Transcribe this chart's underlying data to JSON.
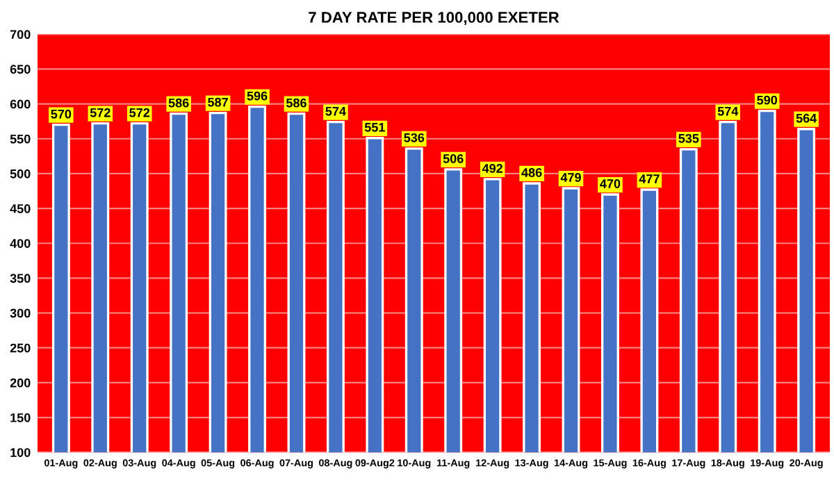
{
  "chart_data": {
    "type": "bar",
    "title": "7 DAY RATE PER 100,000 EXETER",
    "categories": [
      "01-Aug",
      "02-Aug",
      "03-Aug",
      "04-Aug",
      "05-Aug",
      "06-Aug",
      "07-Aug",
      "08-Aug",
      "09-Aug2",
      "10-Aug",
      "11-Aug",
      "12-Aug",
      "13-Aug",
      "14-Aug",
      "15-Aug",
      "16-Aug",
      "17-Aug",
      "18-Aug",
      "19-Aug",
      "20-Aug"
    ],
    "values": [
      570,
      572,
      572,
      586,
      587,
      596,
      586,
      574,
      551,
      536,
      506,
      492,
      486,
      479,
      470,
      477,
      535,
      574,
      590,
      564
    ],
    "color": "#4472c4",
    "ylim": [
      100,
      700
    ],
    "yticks": [
      100,
      150,
      200,
      250,
      300,
      350,
      400,
      450,
      500,
      550,
      600,
      650,
      700
    ],
    "grid": "y",
    "data_labels": true
  }
}
